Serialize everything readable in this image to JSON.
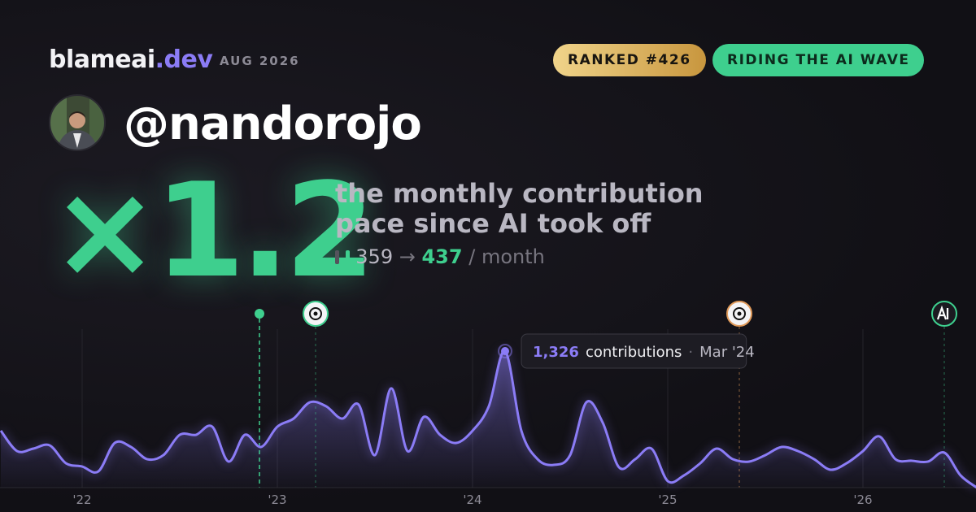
{
  "header": {
    "brand": "blameai",
    "brand_tld": ".dev",
    "date": "AUG 2026",
    "badges": [
      "RANKED #426",
      "RIDING THE AI WAVE"
    ]
  },
  "user": {
    "handle": "@nandorojo"
  },
  "headline": {
    "multiplier": "×1.2",
    "description": [
      "the monthly contribution",
      "pace since AI took off"
    ],
    "before": "359",
    "arrow": "→",
    "after": "437",
    "unit": "/ month"
  },
  "chart_data": {
    "type": "line",
    "categories": [
      null,
      null,
      null,
      null,
      null,
      "'22",
      null,
      null,
      null,
      null,
      null,
      null,
      null,
      null,
      null,
      null,
      null,
      "'23",
      null,
      null,
      null,
      null,
      null,
      null,
      null,
      null,
      null,
      null,
      null,
      "'24",
      null,
      null,
      null,
      null,
      null,
      null,
      null,
      null,
      null,
      null,
      null,
      "'25",
      null,
      null,
      null,
      null,
      null,
      null,
      null,
      null,
      null,
      null,
      null,
      "'26",
      null,
      null,
      null,
      null,
      null,
      null,
      null
    ],
    "series": [
      {
        "color": "#8b7cf6",
        "values": [
          553,
          355,
          379,
          411,
          237,
          205,
          158,
          434,
          395,
          276,
          316,
          513,
          513,
          592,
          253,
          513,
          395,
          592,
          671,
          829,
          790,
          671,
          806,
          316,
          964,
          355,
          687,
          513,
          434,
          553,
          790,
          1326,
          553,
          276,
          221,
          316,
          829,
          632,
          198,
          276,
          379,
          63,
          119,
          237,
          379,
          276,
          253,
          316,
          395,
          355,
          276,
          174,
          237,
          355,
          498,
          276,
          261,
          253,
          340,
          119,
          0
        ],
        "value_labels": [
          null,
          null,
          null,
          null,
          null,
          null,
          null,
          null,
          null,
          null,
          null,
          null,
          null,
          null,
          null,
          null,
          null,
          null,
          null,
          null,
          null,
          null,
          null,
          null,
          null,
          null,
          null,
          null,
          null,
          null,
          null,
          "1,326",
          null,
          null,
          null,
          null,
          null,
          null,
          null,
          null,
          null,
          null,
          null,
          null,
          null,
          null,
          null,
          null,
          null,
          null,
          null,
          null,
          null,
          null,
          null,
          null,
          null,
          null,
          null,
          null,
          null
        ]
      }
    ],
    "ylim": [
      0,
      1500
    ],
    "tooltip": {
      "unit": "contributions",
      "date": "Mar '24"
    }
  }
}
